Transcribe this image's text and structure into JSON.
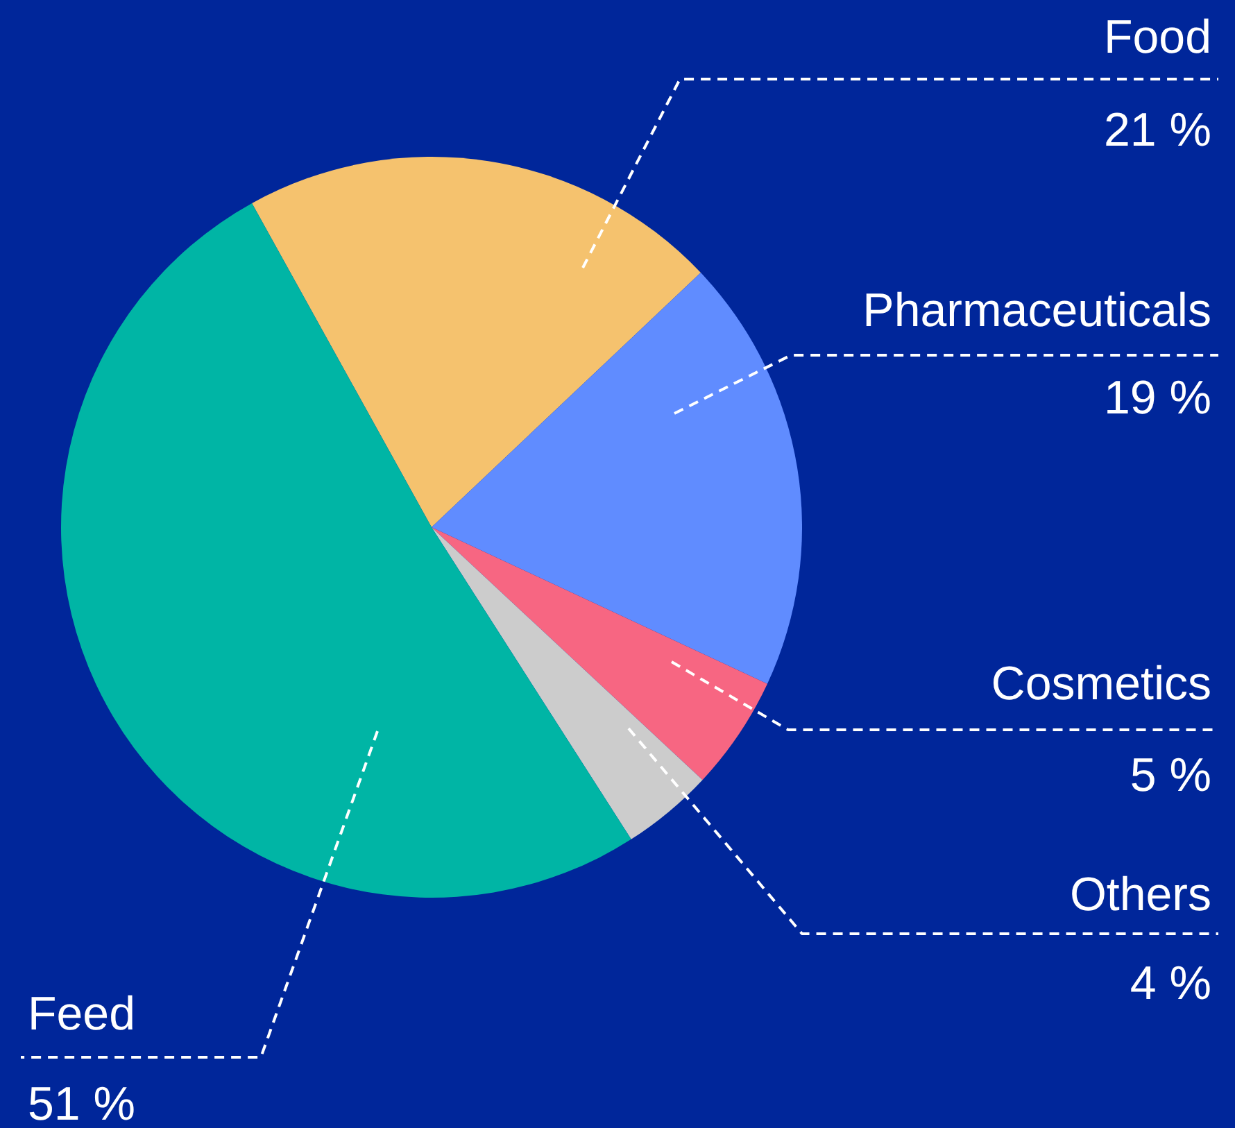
{
  "chart_data": {
    "type": "pie",
    "categories": [
      "Food",
      "Pharmaceuticals",
      "Cosmetics",
      "Others",
      "Feed"
    ],
    "values": [
      21,
      19,
      5,
      4,
      51
    ],
    "value_labels": [
      "21 %",
      "19 %",
      "5 %",
      "4 %",
      "51 %"
    ],
    "colors": [
      "#f5c26e",
      "#608cff",
      "#f76682",
      "#cccccc",
      "#00b5a5"
    ]
  }
}
